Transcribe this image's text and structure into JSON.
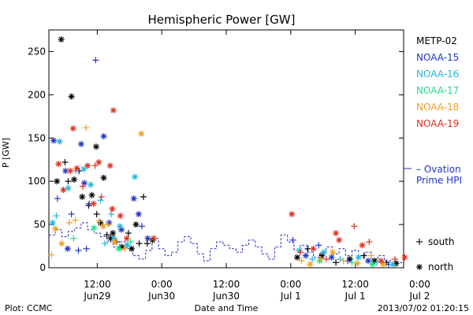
{
  "chart_data": {
    "type": "scatter",
    "title": "Hemispheric Power [GW]",
    "ylabel": "P [GW]",
    "xlabel": "Date and Time",
    "ylim": [
      0,
      275
    ],
    "y_ticks": [
      0,
      50,
      100,
      150,
      200,
      250
    ],
    "x_unit": "hours",
    "xlim": [
      0,
      66
    ],
    "x_ticks": [
      {
        "x": 9,
        "time": "12:00",
        "date": "Jun29"
      },
      {
        "x": 21,
        "time": "0:00",
        "date": "Jun30"
      },
      {
        "x": 33,
        "time": "12:00",
        "date": "Jun30"
      },
      {
        "x": 45,
        "time": "0:00",
        "date": "Jul 1"
      },
      {
        "x": 57,
        "time": "12:00",
        "date": "Jul 1"
      },
      {
        "x": 69,
        "time": "0:00",
        "date": "Jul 2"
      }
    ],
    "footer_left": "Plot: CCMC",
    "timestamp": "2013/07/02 01:20:15",
    "marker_legend": [
      {
        "symbol": "+",
        "label": "south"
      },
      {
        "symbol": "*",
        "label": "north"
      }
    ],
    "series": [
      {
        "name": "METP-02",
        "color": "#000000",
        "points": [
          {
            "x": 2.3,
            "y": 264,
            "m": "*"
          },
          {
            "x": 4.2,
            "y": 198,
            "m": "*"
          },
          {
            "x": 8.8,
            "y": 140,
            "m": "*"
          },
          {
            "x": 1.5,
            "y": 100,
            "m": "*"
          },
          {
            "x": 3.0,
            "y": 122,
            "m": "+"
          },
          {
            "x": 3.6,
            "y": 100,
            "m": "+"
          },
          {
            "x": 4.7,
            "y": 102,
            "m": "*"
          },
          {
            "x": 5.6,
            "y": 112,
            "m": "+"
          },
          {
            "x": 6.2,
            "y": 82,
            "m": "*"
          },
          {
            "x": 7.4,
            "y": 72,
            "m": "+"
          },
          {
            "x": 8.0,
            "y": 84,
            "m": "*"
          },
          {
            "x": 8.9,
            "y": 62,
            "m": "+"
          },
          {
            "x": 9.6,
            "y": 52,
            "m": "*"
          },
          {
            "x": 10.8,
            "y": 38,
            "m": "+"
          },
          {
            "x": 11.5,
            "y": 34,
            "m": "*"
          },
          {
            "x": 12.6,
            "y": 30,
            "m": "+"
          },
          {
            "x": 13.6,
            "y": 24,
            "m": "*"
          },
          {
            "x": 14.8,
            "y": 40,
            "m": "+"
          },
          {
            "x": 15.4,
            "y": 22,
            "m": "*"
          },
          {
            "x": 16.2,
            "y": 50,
            "m": "*"
          },
          {
            "x": 16.8,
            "y": 28,
            "m": "+"
          },
          {
            "x": 17.6,
            "y": 82,
            "m": "+"
          },
          {
            "x": 18.3,
            "y": 28,
            "m": "+"
          },
          {
            "x": 19.3,
            "y": 32,
            "m": "*"
          },
          {
            "x": 11.9,
            "y": 40,
            "m": "*"
          },
          {
            "x": 10.2,
            "y": 104,
            "m": "*"
          },
          {
            "x": 46.2,
            "y": 12,
            "m": "*"
          },
          {
            "x": 48.2,
            "y": 22,
            "m": "+"
          },
          {
            "x": 50.8,
            "y": 14,
            "m": "*"
          },
          {
            "x": 53.4,
            "y": 6,
            "m": "+"
          },
          {
            "x": 56.0,
            "y": 10,
            "m": "*"
          },
          {
            "x": 58.6,
            "y": 14,
            "m": "+"
          },
          {
            "x": 60.6,
            "y": 8,
            "m": "*"
          },
          {
            "x": 62.8,
            "y": 6,
            "m": "+"
          },
          {
            "x": 64.6,
            "y": 5,
            "m": "*"
          }
        ]
      },
      {
        "name": "NOAA-15",
        "color": "#2233cc",
        "points": [
          {
            "x": 8.7,
            "y": 240,
            "m": "+"
          },
          {
            "x": 0.9,
            "y": 147,
            "m": "*"
          },
          {
            "x": 6.0,
            "y": 143,
            "m": "*"
          },
          {
            "x": 10.2,
            "y": 152,
            "m": "*"
          },
          {
            "x": 1.6,
            "y": 80,
            "m": "+"
          },
          {
            "x": 3.1,
            "y": 112,
            "m": "*"
          },
          {
            "x": 6.6,
            "y": 98,
            "m": "*"
          },
          {
            "x": 4.2,
            "y": 62,
            "m": "+"
          },
          {
            "x": 7.5,
            "y": 74,
            "m": "+"
          },
          {
            "x": 11.2,
            "y": 52,
            "m": "*"
          },
          {
            "x": 13.5,
            "y": 44,
            "m": "*"
          },
          {
            "x": 15.8,
            "y": 80,
            "m": "*"
          },
          {
            "x": 16.7,
            "y": 62,
            "m": "*"
          },
          {
            "x": 17.3,
            "y": 48,
            "m": "+"
          },
          {
            "x": 18.4,
            "y": 34,
            "m": "*"
          },
          {
            "x": 5.5,
            "y": 20,
            "m": "+"
          },
          {
            "x": 3.5,
            "y": 22,
            "m": "*"
          },
          {
            "x": 7.0,
            "y": 22,
            "m": "+"
          },
          {
            "x": 45.4,
            "y": 32,
            "m": "+"
          },
          {
            "x": 47.8,
            "y": 14,
            "m": "*"
          },
          {
            "x": 50.2,
            "y": 26,
            "m": "+"
          },
          {
            "x": 52.6,
            "y": 12,
            "m": "*"
          },
          {
            "x": 55.6,
            "y": 8,
            "m": "+"
          },
          {
            "x": 59.4,
            "y": 8,
            "m": "*"
          },
          {
            "x": 63.2,
            "y": 4,
            "m": "+"
          }
        ]
      },
      {
        "name": "NOAA-16",
        "color": "#22b8e0",
        "points": [
          {
            "x": 2.0,
            "y": 146,
            "m": "*"
          },
          {
            "x": 16.0,
            "y": 105,
            "m": "*"
          },
          {
            "x": 5.0,
            "y": 112,
            "m": "+"
          },
          {
            "x": 6.5,
            "y": 114,
            "m": "*"
          },
          {
            "x": 7.8,
            "y": 96,
            "m": "*"
          },
          {
            "x": 9.6,
            "y": 78,
            "m": "+"
          },
          {
            "x": 11.6,
            "y": 62,
            "m": "+"
          },
          {
            "x": 13.2,
            "y": 48,
            "m": "*"
          },
          {
            "x": 0.7,
            "y": 52,
            "m": "*"
          },
          {
            "x": 1.4,
            "y": 60,
            "m": "+"
          },
          {
            "x": 3.6,
            "y": 92,
            "m": "*"
          },
          {
            "x": 10.4,
            "y": 28,
            "m": "+"
          },
          {
            "x": 12.1,
            "y": 34,
            "m": "*"
          },
          {
            "x": 14.6,
            "y": 26,
            "m": "*"
          },
          {
            "x": 46.6,
            "y": 20,
            "m": "*"
          },
          {
            "x": 49.0,
            "y": 10,
            "m": "+"
          },
          {
            "x": 51.2,
            "y": 18,
            "m": "*"
          },
          {
            "x": 54.2,
            "y": 10,
            "m": "+"
          },
          {
            "x": 57.6,
            "y": 12,
            "m": "*"
          },
          {
            "x": 61.0,
            "y": 6,
            "m": "+"
          },
          {
            "x": 64.0,
            "y": 4,
            "m": "*"
          }
        ]
      },
      {
        "name": "NOAA-17",
        "color": "#22dd88",
        "points": [
          {
            "x": 13.0,
            "y": 22,
            "m": "*"
          },
          {
            "x": 15.2,
            "y": 30,
            "m": "+"
          },
          {
            "x": 8.4,
            "y": 46,
            "m": "*"
          },
          {
            "x": 4.6,
            "y": 34,
            "m": "+"
          },
          {
            "x": 50.4,
            "y": 8,
            "m": "*"
          },
          {
            "x": 56.4,
            "y": 6,
            "m": "+"
          },
          {
            "x": 60.2,
            "y": 4,
            "m": "*"
          }
        ]
      },
      {
        "name": "NOAA-18",
        "color": "#f0a020",
        "points": [
          {
            "x": 17.2,
            "y": 155,
            "m": "*"
          },
          {
            "x": 6.9,
            "y": 162,
            "m": "+"
          },
          {
            "x": 4.9,
            "y": 55,
            "m": "+"
          },
          {
            "x": 0.5,
            "y": 15,
            "m": "+"
          },
          {
            "x": 1.2,
            "y": 45,
            "m": "*"
          },
          {
            "x": 2.4,
            "y": 28,
            "m": "*"
          },
          {
            "x": 3.8,
            "y": 52,
            "m": "+"
          },
          {
            "x": 9.4,
            "y": 54,
            "m": "+"
          },
          {
            "x": 10.1,
            "y": 48,
            "m": "*"
          },
          {
            "x": 11.0,
            "y": 50,
            "m": "+"
          },
          {
            "x": 12.2,
            "y": 30,
            "m": "*"
          },
          {
            "x": 14.1,
            "y": 22,
            "m": "+"
          },
          {
            "x": 47.0,
            "y": 8,
            "m": "+"
          },
          {
            "x": 48.6,
            "y": 4,
            "m": "*"
          },
          {
            "x": 50.6,
            "y": 10,
            "m": "+"
          },
          {
            "x": 52.8,
            "y": 18,
            "m": "*"
          },
          {
            "x": 54.8,
            "y": 8,
            "m": "+"
          },
          {
            "x": 57.4,
            "y": 5,
            "m": "*"
          },
          {
            "x": 60.0,
            "y": 14,
            "m": "+"
          },
          {
            "x": 62.2,
            "y": 4,
            "m": "*"
          }
        ]
      },
      {
        "name": "NOAA-19",
        "color": "#e03020",
        "points": [
          {
            "x": 12.0,
            "y": 182,
            "m": "*"
          },
          {
            "x": 4.5,
            "y": 161,
            "m": "*"
          },
          {
            "x": 1.8,
            "y": 120,
            "m": "*"
          },
          {
            "x": 2.7,
            "y": 90,
            "m": "*"
          },
          {
            "x": 5.2,
            "y": 115,
            "m": "*"
          },
          {
            "x": 7.2,
            "y": 118,
            "m": "*"
          },
          {
            "x": 8.6,
            "y": 118,
            "m": "+"
          },
          {
            "x": 9.3,
            "y": 122,
            "m": "*"
          },
          {
            "x": 11.4,
            "y": 118,
            "m": "*"
          },
          {
            "x": 4.0,
            "y": 112,
            "m": "*"
          },
          {
            "x": 6.3,
            "y": 94,
            "m": "+"
          },
          {
            "x": 8.3,
            "y": 74,
            "m": "*"
          },
          {
            "x": 9.8,
            "y": 82,
            "m": "+"
          },
          {
            "x": 11.8,
            "y": 68,
            "m": "*"
          },
          {
            "x": 13.3,
            "y": 60,
            "m": "*"
          },
          {
            "x": 14.5,
            "y": 34,
            "m": "*"
          },
          {
            "x": 19.5,
            "y": 34,
            "m": "*"
          },
          {
            "x": 45.2,
            "y": 62,
            "m": "*"
          },
          {
            "x": 53.4,
            "y": 40,
            "m": "*"
          },
          {
            "x": 56.8,
            "y": 48,
            "m": "+"
          },
          {
            "x": 58.3,
            "y": 26,
            "m": "*"
          },
          {
            "x": 46.8,
            "y": 18,
            "m": "+"
          },
          {
            "x": 49.2,
            "y": 22,
            "m": "*"
          },
          {
            "x": 51.6,
            "y": 10,
            "m": "+"
          },
          {
            "x": 54.0,
            "y": 32,
            "m": "*"
          },
          {
            "x": 59.6,
            "y": 30,
            "m": "+"
          },
          {
            "x": 61.8,
            "y": 8,
            "m": "*"
          },
          {
            "x": 64.4,
            "y": 10,
            "m": "+"
          },
          {
            "x": 66.2,
            "y": 12,
            "m": "*"
          }
        ]
      }
    ],
    "model_line": {
      "name": "Ovation Prime HPI",
      "legend_text": [
        "– Ovation",
        "Prime HPI"
      ],
      "color": "#2233cc",
      "points": [
        [
          0,
          38
        ],
        [
          1.2,
          38
        ],
        [
          1.2,
          44
        ],
        [
          2.4,
          44
        ],
        [
          2.4,
          36
        ],
        [
          3.6,
          36
        ],
        [
          3.6,
          42
        ],
        [
          4.8,
          42
        ],
        [
          4.8,
          46
        ],
        [
          6,
          46
        ],
        [
          6,
          52
        ],
        [
          7.2,
          52
        ],
        [
          7.2,
          44
        ],
        [
          8.4,
          44
        ],
        [
          8.4,
          40
        ],
        [
          9.6,
          40
        ],
        [
          9.6,
          36
        ],
        [
          10.8,
          36
        ],
        [
          10.8,
          30
        ],
        [
          12,
          30
        ],
        [
          12,
          24
        ],
        [
          13.2,
          24
        ],
        [
          13.2,
          30
        ],
        [
          14.4,
          30
        ],
        [
          14.4,
          22
        ],
        [
          15.6,
          22
        ],
        [
          15.6,
          14
        ],
        [
          16.8,
          14
        ],
        [
          16.8,
          10
        ],
        [
          18,
          10
        ],
        [
          18,
          20
        ],
        [
          19.2,
          20
        ],
        [
          19.2,
          34
        ],
        [
          20.4,
          34
        ],
        [
          20.4,
          22
        ],
        [
          21.6,
          22
        ],
        [
          21.6,
          14
        ],
        [
          22.8,
          14
        ],
        [
          22.8,
          18
        ],
        [
          24,
          18
        ],
        [
          24,
          30
        ],
        [
          25.2,
          30
        ],
        [
          25.2,
          36
        ],
        [
          26.4,
          36
        ],
        [
          26.4,
          28
        ],
        [
          27.6,
          28
        ],
        [
          27.6,
          16
        ],
        [
          28.8,
          16
        ],
        [
          28.8,
          8
        ],
        [
          30,
          8
        ],
        [
          30,
          22
        ],
        [
          31.2,
          22
        ],
        [
          31.2,
          30
        ],
        [
          32.4,
          30
        ],
        [
          32.4,
          26
        ],
        [
          33.6,
          26
        ],
        [
          33.6,
          22
        ],
        [
          34.8,
          22
        ],
        [
          34.8,
          18
        ],
        [
          36,
          18
        ],
        [
          36,
          26
        ],
        [
          37.2,
          26
        ],
        [
          37.2,
          32
        ],
        [
          38.4,
          32
        ],
        [
          38.4,
          24
        ],
        [
          39.6,
          24
        ],
        [
          39.6,
          16
        ],
        [
          40.8,
          16
        ],
        [
          40.8,
          10
        ],
        [
          42,
          10
        ],
        [
          42,
          24
        ],
        [
          43.2,
          24
        ],
        [
          43.2,
          38
        ],
        [
          44.4,
          38
        ],
        [
          44.4,
          30
        ],
        [
          45.6,
          30
        ],
        [
          45.6,
          20
        ],
        [
          46.8,
          20
        ],
        [
          46.8,
          26
        ],
        [
          48,
          26
        ],
        [
          48,
          18
        ],
        [
          49.2,
          18
        ],
        [
          49.2,
          12
        ],
        [
          50.4,
          12
        ],
        [
          50.4,
          18
        ],
        [
          51.6,
          18
        ],
        [
          51.6,
          24
        ],
        [
          52.8,
          24
        ],
        [
          52.8,
          16
        ],
        [
          54,
          16
        ],
        [
          54,
          22
        ],
        [
          55.2,
          22
        ],
        [
          55.2,
          14
        ],
        [
          56.4,
          14
        ],
        [
          56.4,
          20
        ],
        [
          57.6,
          20
        ],
        [
          57.6,
          12
        ],
        [
          58.8,
          12
        ],
        [
          58.8,
          18
        ],
        [
          60,
          18
        ],
        [
          60,
          10
        ],
        [
          61.2,
          10
        ],
        [
          61.2,
          14
        ],
        [
          62.4,
          14
        ],
        [
          62.4,
          8
        ],
        [
          63.6,
          8
        ],
        [
          63.6,
          10
        ],
        [
          64.8,
          10
        ],
        [
          64.8,
          6
        ],
        [
          66,
          6
        ]
      ]
    }
  }
}
